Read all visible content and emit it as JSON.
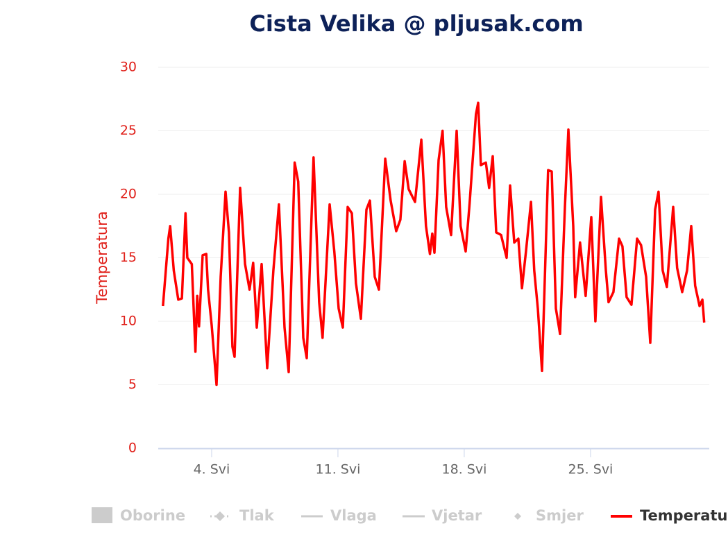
{
  "chart_data": {
    "type": "line",
    "title": "Cista Velika @ pljusak.com",
    "y_label": "Temperatura",
    "xlim": [
      1.04,
      31.58
    ],
    "xticks": [
      {
        "value": 4,
        "label": "4. Svi"
      },
      {
        "value": 11,
        "label": "11. Svi"
      },
      {
        "value": 18,
        "label": "18. Svi"
      },
      {
        "value": 25,
        "label": "25. Svi"
      }
    ],
    "ylim": [
      0,
      30
    ],
    "yticks": [
      0,
      5,
      10,
      15,
      20,
      25,
      30
    ],
    "grid": true,
    "legend": [
      {
        "name": "Oborine",
        "symbol": "column"
      },
      {
        "name": "Tlak",
        "symbol": "dotted-diamond"
      },
      {
        "name": "Vlaga",
        "symbol": "line"
      },
      {
        "name": "Vjetar",
        "symbol": "line"
      },
      {
        "name": "Smjer",
        "symbol": "diamond"
      }
    ],
    "x": [
      1.3,
      1.6,
      1.7,
      1.9,
      2.15,
      2.35,
      2.55,
      2.65,
      2.9,
      3.1,
      3.2,
      3.3,
      3.5,
      3.7,
      3.8,
      4.0,
      4.27,
      4.5,
      4.77,
      4.96,
      5.15,
      5.27,
      5.58,
      5.85,
      6.1,
      6.3,
      6.5,
      6.77,
      7.08,
      7.42,
      7.73,
      8.04,
      8.27,
      8.6,
      8.8,
      9.08,
      9.27,
      9.65,
      9.96,
      10.15,
      10.54,
      10.8,
      11.04,
      11.27,
      11.54,
      11.77,
      12.0,
      12.27,
      12.58,
      12.77,
      13.04,
      13.27,
      13.62,
      13.92,
      14.23,
      14.46,
      14.7,
      14.92,
      15.27,
      15.62,
      15.88,
      16.1,
      16.23,
      16.35,
      16.58,
      16.8,
      17.0,
      17.27,
      17.58,
      17.8,
      18.08,
      18.3,
      18.65,
      18.77,
      18.92,
      19.2,
      19.38,
      19.58,
      19.77,
      20.04,
      20.35,
      20.54,
      20.77,
      21.0,
      21.2,
      21.42,
      21.7,
      21.88,
      22.08,
      22.31,
      22.65,
      22.85,
      23.08,
      23.31,
      23.58,
      23.77,
      24.04,
      24.15,
      24.42,
      24.73,
      25.04,
      25.27,
      25.58,
      25.85,
      26.0,
      26.27,
      26.58,
      26.77,
      27.0,
      27.27,
      27.58,
      27.8,
      28.08,
      28.31,
      28.58,
      28.77,
      29.0,
      29.23,
      29.58,
      29.8,
      30.08,
      30.35,
      30.58,
      30.8,
      31.04,
      31.2,
      31.3
    ],
    "series": [
      {
        "name": "Temperatura",
        "color": "#ff0000",
        "values": [
          11.2,
          16.5,
          17.5,
          14,
          11.7,
          11.8,
          18.5,
          15,
          14.5,
          7.6,
          12,
          9.6,
          15.2,
          15.3,
          12.5,
          9.7,
          5,
          13.5,
          20.2,
          17,
          8,
          7.2,
          20.5,
          14.5,
          12.5,
          14.6,
          9.5,
          14.5,
          6.3,
          14,
          19.2,
          9.5,
          6,
          22.5,
          21,
          8.7,
          7.1,
          22.9,
          11.5,
          8.7,
          19.2,
          15.5,
          11,
          9.5,
          19,
          18.5,
          13,
          10.2,
          18.8,
          19.5,
          13.5,
          12.5,
          22.8,
          19.5,
          17.1,
          18,
          22.6,
          20.4,
          19.4,
          24.3,
          17.5,
          15.3,
          16.9,
          15.4,
          22.7,
          25,
          19,
          16.8,
          25,
          17.5,
          15.5,
          19.3,
          26.3,
          27.2,
          22.3,
          22.5,
          20.5,
          23,
          17,
          16.8,
          15,
          20.7,
          16.2,
          16.5,
          12.6,
          15.5,
          19.4,
          14,
          11,
          6.1,
          21.9,
          21.8,
          11,
          9,
          19,
          25.1,
          17.5,
          11.9,
          16.2,
          12,
          18.2,
          10,
          19.8,
          14,
          11.5,
          12.3,
          16.5,
          15.9,
          11.9,
          11.3,
          16.5,
          16,
          13.5,
          8.3,
          18.8,
          20.2,
          14,
          12.7,
          19,
          14.2,
          12.3,
          14,
          17.5,
          12.8,
          11.2,
          11.7,
          9.9
        ]
      }
    ]
  }
}
